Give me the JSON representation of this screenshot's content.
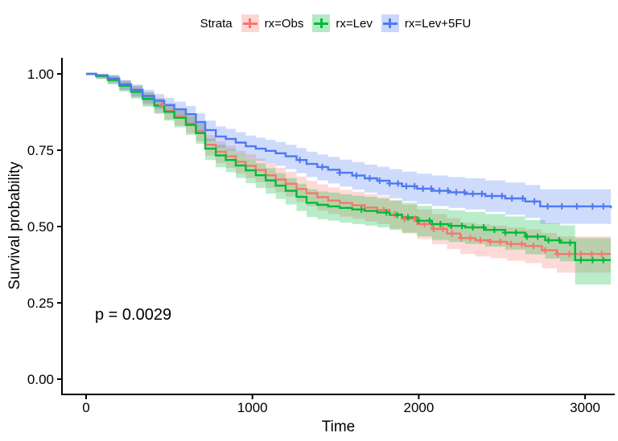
{
  "legend": {
    "title": "Strata"
  },
  "annotation": {
    "p_value": "p = 0.0029"
  },
  "chart_data": {
    "type": "line",
    "subtype": "kaplan-meier-step-with-ci-bands",
    "title": "",
    "xlabel": "Time",
    "ylabel": "Survival probability",
    "xlim": [
      0,
      3200
    ],
    "ylim": [
      0.0,
      1.0
    ],
    "grid": "off",
    "legend_position": "top",
    "xticks": [
      0,
      1000,
      2000,
      3000
    ],
    "xticklabels": [
      "0",
      "1000",
      "2000",
      "3000"
    ],
    "yticks": [
      0.0,
      0.25,
      0.5,
      0.75,
      1.0
    ],
    "yticklabels": [
      "0.00",
      "0.25",
      "0.50",
      "0.75",
      "1.00"
    ],
    "point_format": "[time, survival, ci_lower, ci_upper]",
    "series": [
      {
        "name": "rx=Obs",
        "color": "#F8766D",
        "band_opacity": 0.27,
        "points": [
          [
            0,
            1,
            1,
            1
          ],
          [
            60,
            0.994,
            0.984,
            1
          ],
          [
            130,
            0.982,
            0.968,
            0.995
          ],
          [
            200,
            0.964,
            0.946,
            0.979
          ],
          [
            270,
            0.944,
            0.923,
            0.962
          ],
          [
            340,
            0.921,
            0.897,
            0.941
          ],
          [
            410,
            0.898,
            0.872,
            0.921
          ],
          [
            470,
            0.879,
            0.851,
            0.904
          ],
          [
            530,
            0.861,
            0.831,
            0.888
          ],
          [
            600,
            0.838,
            0.806,
            0.866
          ],
          [
            660,
            0.812,
            0.779,
            0.842
          ],
          [
            716,
            0.768,
            0.732,
            0.8
          ],
          [
            780,
            0.745,
            0.708,
            0.779
          ],
          [
            840,
            0.73,
            0.692,
            0.765
          ],
          [
            900,
            0.712,
            0.673,
            0.748
          ],
          [
            960,
            0.699,
            0.659,
            0.736
          ],
          [
            1020,
            0.685,
            0.645,
            0.722
          ],
          [
            1080,
            0.668,
            0.627,
            0.707
          ],
          [
            1140,
            0.654,
            0.612,
            0.693
          ],
          [
            1200,
            0.64,
            0.598,
            0.68
          ],
          [
            1265,
            0.623,
            0.58,
            0.664
          ],
          [
            1325,
            0.609,
            0.566,
            0.65
          ],
          [
            1390,
            0.596,
            0.552,
            0.638
          ],
          [
            1455,
            0.585,
            0.541,
            0.628
          ],
          [
            1525,
            0.577,
            0.532,
            0.62
          ],
          [
            1600,
            0.57,
            0.525,
            0.614
          ],
          [
            1675,
            0.562,
            0.516,
            0.606
          ],
          [
            1750,
            0.554,
            0.508,
            0.599
          ],
          [
            1825,
            0.54,
            0.493,
            0.586
          ],
          [
            1900,
            0.525,
            0.477,
            0.572
          ],
          [
            1990,
            0.508,
            0.459,
            0.556
          ],
          [
            2080,
            0.492,
            0.442,
            0.541
          ],
          [
            2170,
            0.477,
            0.426,
            0.527
          ],
          [
            2250,
            0.462,
            0.41,
            0.513
          ],
          [
            2340,
            0.455,
            0.402,
            0.507
          ],
          [
            2430,
            0.45,
            0.396,
            0.503
          ],
          [
            2530,
            0.443,
            0.388,
            0.497
          ],
          [
            2640,
            0.436,
            0.38,
            0.491
          ],
          [
            2740,
            0.422,
            0.363,
            0.479
          ],
          [
            2830,
            0.41,
            0.349,
            0.468
          ],
          [
            3155,
            0.41,
            0.349,
            0.468
          ]
        ],
        "censor_times": [
          455,
          1790,
          1855,
          1915,
          1975,
          2035,
          2090,
          2145,
          2200,
          2255,
          2310,
          2370,
          2430,
          2490,
          2555,
          2620,
          2690,
          2760,
          2835,
          2905,
          2975,
          3040,
          3100
        ]
      },
      {
        "name": "rx=Lev",
        "color": "#00BA38",
        "band_opacity": 0.27,
        "points": [
          [
            0,
            1,
            1,
            1
          ],
          [
            60,
            0.993,
            0.983,
            1
          ],
          [
            130,
            0.98,
            0.965,
            0.994
          ],
          [
            200,
            0.961,
            0.942,
            0.977
          ],
          [
            270,
            0.941,
            0.919,
            0.96
          ],
          [
            340,
            0.918,
            0.893,
            0.939
          ],
          [
            410,
            0.896,
            0.869,
            0.919
          ],
          [
            470,
            0.876,
            0.847,
            0.901
          ],
          [
            530,
            0.856,
            0.825,
            0.883
          ],
          [
            600,
            0.833,
            0.8,
            0.861
          ],
          [
            660,
            0.806,
            0.771,
            0.836
          ],
          [
            716,
            0.755,
            0.718,
            0.788
          ],
          [
            780,
            0.733,
            0.694,
            0.768
          ],
          [
            840,
            0.718,
            0.678,
            0.754
          ],
          [
            900,
            0.7,
            0.659,
            0.737
          ],
          [
            960,
            0.684,
            0.642,
            0.722
          ],
          [
            1020,
            0.668,
            0.626,
            0.707
          ],
          [
            1080,
            0.651,
            0.608,
            0.691
          ],
          [
            1140,
            0.634,
            0.59,
            0.675
          ],
          [
            1200,
            0.617,
            0.572,
            0.659
          ],
          [
            1265,
            0.597,
            0.551,
            0.64
          ],
          [
            1325,
            0.578,
            0.531,
            0.622
          ],
          [
            1390,
            0.571,
            0.524,
            0.615
          ],
          [
            1455,
            0.566,
            0.519,
            0.611
          ],
          [
            1525,
            0.561,
            0.513,
            0.606
          ],
          [
            1600,
            0.556,
            0.508,
            0.601
          ],
          [
            1675,
            0.551,
            0.503,
            0.597
          ],
          [
            1750,
            0.546,
            0.497,
            0.592
          ],
          [
            1825,
            0.538,
            0.489,
            0.585
          ],
          [
            1900,
            0.53,
            0.48,
            0.578
          ],
          [
            1990,
            0.519,
            0.468,
            0.568
          ],
          [
            2080,
            0.508,
            0.456,
            0.558
          ],
          [
            2180,
            0.502,
            0.449,
            0.553
          ],
          [
            2280,
            0.497,
            0.443,
            0.548
          ],
          [
            2400,
            0.489,
            0.434,
            0.541
          ],
          [
            2520,
            0.48,
            0.424,
            0.533
          ],
          [
            2640,
            0.467,
            0.409,
            0.521
          ],
          [
            2760,
            0.455,
            0.395,
            0.511
          ],
          [
            2850,
            0.447,
            0.386,
            0.504
          ],
          [
            2940,
            0.39,
            0.31,
            0.462
          ],
          [
            3155,
            0.39,
            0.3,
            0.475
          ]
        ],
        "censor_times": [
          1655,
          1805,
          1870,
          1935,
          2000,
          2065,
          2130,
          2195,
          2260,
          2325,
          2390,
          2455,
          2520,
          2585,
          2650,
          2715,
          2780,
          2845,
          2910,
          2975,
          3045,
          3110
        ]
      },
      {
        "name": "rx=Lev+5FU",
        "color": "#4E79F0",
        "band_opacity": 0.27,
        "points": [
          [
            0,
            1,
            1,
            1
          ],
          [
            60,
            0.995,
            0.987,
            1
          ],
          [
            130,
            0.985,
            0.971,
            0.997
          ],
          [
            200,
            0.966,
            0.947,
            0.98
          ],
          [
            270,
            0.948,
            0.926,
            0.965
          ],
          [
            340,
            0.928,
            0.903,
            0.948
          ],
          [
            410,
            0.912,
            0.885,
            0.934
          ],
          [
            470,
            0.898,
            0.869,
            0.921
          ],
          [
            530,
            0.884,
            0.854,
            0.909
          ],
          [
            600,
            0.868,
            0.836,
            0.895
          ],
          [
            660,
            0.842,
            0.808,
            0.871
          ],
          [
            716,
            0.816,
            0.78,
            0.847
          ],
          [
            780,
            0.795,
            0.757,
            0.828
          ],
          [
            840,
            0.787,
            0.749,
            0.82
          ],
          [
            900,
            0.775,
            0.736,
            0.809
          ],
          [
            960,
            0.763,
            0.723,
            0.798
          ],
          [
            1020,
            0.755,
            0.715,
            0.791
          ],
          [
            1080,
            0.748,
            0.707,
            0.784
          ],
          [
            1140,
            0.74,
            0.699,
            0.777
          ],
          [
            1200,
            0.73,
            0.688,
            0.768
          ],
          [
            1265,
            0.718,
            0.675,
            0.757
          ],
          [
            1325,
            0.705,
            0.662,
            0.745
          ],
          [
            1390,
            0.695,
            0.651,
            0.736
          ],
          [
            1455,
            0.686,
            0.641,
            0.728
          ],
          [
            1525,
            0.676,
            0.631,
            0.719
          ],
          [
            1600,
            0.667,
            0.621,
            0.711
          ],
          [
            1675,
            0.658,
            0.611,
            0.703
          ],
          [
            1750,
            0.65,
            0.603,
            0.696
          ],
          [
            1825,
            0.641,
            0.593,
            0.688
          ],
          [
            1900,
            0.632,
            0.583,
            0.68
          ],
          [
            1990,
            0.624,
            0.574,
            0.673
          ],
          [
            2080,
            0.617,
            0.567,
            0.667
          ],
          [
            2180,
            0.612,
            0.561,
            0.662
          ],
          [
            2280,
            0.607,
            0.556,
            0.658
          ],
          [
            2400,
            0.6,
            0.548,
            0.651
          ],
          [
            2520,
            0.592,
            0.539,
            0.644
          ],
          [
            2640,
            0.582,
            0.528,
            0.636
          ],
          [
            2730,
            0.566,
            0.509,
            0.622
          ],
          [
            3155,
            0.56,
            0.502,
            0.617
          ]
        ],
        "censor_times": [
          1285,
          1420,
          1525,
          1625,
          1705,
          1765,
          1825,
          1875,
          1925,
          1975,
          2025,
          2075,
          2125,
          2175,
          2225,
          2275,
          2325,
          2380,
          2440,
          2500,
          2560,
          2625,
          2695,
          2775,
          2860,
          2950,
          3045,
          3110
        ]
      }
    ]
  }
}
